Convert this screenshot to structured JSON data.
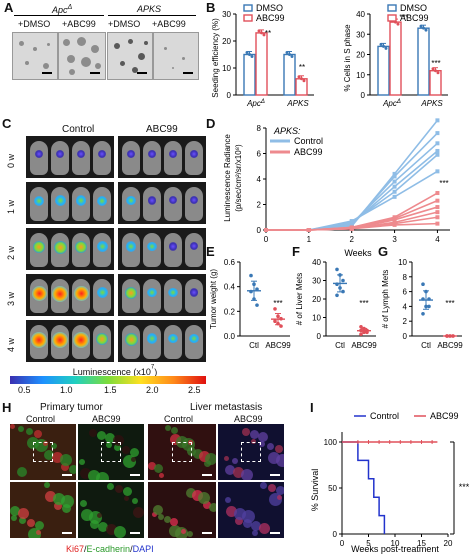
{
  "panels": {
    "A": {
      "label": "A",
      "group1": "Apc",
      "group1_sup": "Δ",
      "group2": "APKS",
      "cond1": "+DMSO",
      "cond2": "+ABC99",
      "cond3": "+DMSO",
      "cond4": "+ABC99"
    },
    "B": {
      "label": "B",
      "legend_dmso": "DMSO",
      "legend_abc99": "ABC99",
      "left": {
        "ylabel": "Seeding efficiency (%)",
        "yticks": [
          "0",
          "10",
          "20",
          "30"
        ],
        "xcat1": "Apc",
        "xcat1_sup": "Δ",
        "xcat2": "APKS",
        "sig1": "**",
        "sig2": "**"
      },
      "right": {
        "ylabel": "% Cells in S phase",
        "yticks": [
          "0",
          "10",
          "20",
          "30",
          "40"
        ],
        "xcat1": "Apc",
        "xcat1_sup": "Δ",
        "xcat2": "APKS",
        "sig1": "***",
        "sig2": "***"
      }
    },
    "C": {
      "label": "C",
      "col_control": "Control",
      "col_abc99": "ABC99",
      "rows": [
        "0  w",
        "1  w",
        "2  w",
        "3  w",
        "4  w"
      ],
      "scale_title": "Luminescence (x10",
      "scale_title_sup": "7",
      "scale_title_end": ")",
      "scale_ticks": [
        "0.5",
        "1.0",
        "1.5",
        "2.0",
        "2.5"
      ]
    },
    "D": {
      "label": "D",
      "legend_title": "APKS:",
      "legend_control": "Control",
      "legend_abc99": "ABC99",
      "ylabel": "Luminescence Radiance",
      "ylabel2": "(p/sec/cm²/sr/x10⁸)",
      "xlabel": "Weeks",
      "yticks": [
        "0",
        "2",
        "4",
        "6",
        "8"
      ],
      "xticks": [
        "0",
        "1",
        "2",
        "3",
        "4"
      ],
      "sig": "***"
    },
    "E": {
      "label": "E",
      "ylabel": "Tumor weight (g)",
      "yticks": [
        "0.0",
        "0.2",
        "0.4",
        "0.6"
      ],
      "cats": [
        "Ctl",
        "ABC99"
      ],
      "sig": "***"
    },
    "F": {
      "label": "F",
      "ylabel": "# of Liver Mets",
      "yticks": [
        "0",
        "10",
        "20",
        "30",
        "40"
      ],
      "cats": [
        "Ctl",
        "ABC99"
      ],
      "sig": "***"
    },
    "G": {
      "label": "G",
      "ylabel": "# of Lymph Mets",
      "yticks": [
        "0",
        "2",
        "4",
        "6",
        "8",
        "10"
      ],
      "cats": [
        "Ctl",
        "ABC99"
      ],
      "sig": "***"
    },
    "H": {
      "label": "H",
      "title_left": "Primary tumor",
      "title_right": "Liver metastasis",
      "control": "Control",
      "abc99": "ABC99",
      "stain1": "Ki67",
      "stain_sep1": "/",
      "stain2": "E-cadherin",
      "stain_sep2": "/",
      "stain3": "DAPI"
    },
    "I": {
      "label": "I",
      "legend_control": "Control",
      "legend_abc99": "ABC99",
      "ylabel": "% Survival",
      "xlabel": "Weeks post-treatment",
      "yticks": [
        "0",
        "50",
        "100"
      ],
      "xticks": [
        "0",
        "5",
        "10",
        "15",
        "20"
      ],
      "sig": "***"
    }
  },
  "colors": {
    "dmso": "#3a78b5",
    "abc99": "#e0505a",
    "control_line": "#8fbde6",
    "abc99_line": "#ee8a8e"
  },
  "chart_data": [
    {
      "panel": "B-left",
      "type": "bar",
      "categories": [
        "Apc Δ",
        "APKS"
      ],
      "series": [
        {
          "name": "DMSO",
          "values": [
            15,
            15
          ]
        },
        {
          "name": "ABC99",
          "values": [
            23,
            6
          ]
        }
      ],
      "ylabel": "Seeding efficiency (%)",
      "ylim": [
        0,
        30
      ]
    },
    {
      "panel": "B-right",
      "type": "bar",
      "categories": [
        "Apc Δ",
        "APKS"
      ],
      "series": [
        {
          "name": "DMSO",
          "values": [
            24,
            33
          ]
        },
        {
          "name": "ABC99",
          "values": [
            36,
            12
          ]
        }
      ],
      "ylabel": "% Cells in S phase",
      "ylim": [
        0,
        40
      ]
    },
    {
      "panel": "D",
      "type": "line",
      "x": [
        0,
        1,
        2,
        3,
        4
      ],
      "series": [
        {
          "name": "Control",
          "values": [
            0,
            0,
            0.3,
            4.4,
            8.6
          ]
        },
        {
          "name": "Control",
          "values": [
            0,
            0,
            0.4,
            4.2,
            7.6
          ]
        },
        {
          "name": "Control",
          "values": [
            0,
            0,
            0.5,
            3.8,
            6.8
          ]
        },
        {
          "name": "Control",
          "values": [
            0,
            0,
            0.5,
            3.4,
            6.2
          ]
        },
        {
          "name": "Control",
          "values": [
            0,
            0,
            0.6,
            3.0,
            5.9
          ]
        },
        {
          "name": "Control",
          "values": [
            0,
            0,
            0.7,
            2.6,
            4.6
          ]
        },
        {
          "name": "ABC99",
          "values": [
            0,
            0,
            0.2,
            1.0,
            2.9
          ]
        },
        {
          "name": "ABC99",
          "values": [
            0,
            0,
            0.2,
            0.9,
            2.3
          ]
        },
        {
          "name": "ABC99",
          "values": [
            0,
            0,
            0.1,
            0.8,
            1.8
          ]
        },
        {
          "name": "ABC99",
          "values": [
            0,
            0,
            0.1,
            0.6,
            1.4
          ]
        },
        {
          "name": "ABC99",
          "values": [
            0,
            0,
            0.1,
            0.5,
            1.0
          ]
        },
        {
          "name": "ABC99",
          "values": [
            0,
            0,
            0.1,
            0.4,
            0.5
          ]
        }
      ],
      "xlabel": "Weeks",
      "ylabel": "Luminescence Radiance (p/sec/cm²/sr/x10⁸)",
      "ylim": [
        0,
        8
      ]
    },
    {
      "panel": "E",
      "type": "scatter",
      "categories": [
        "Ctl",
        "ABC99"
      ],
      "series": [
        {
          "name": "Ctl",
          "values": [
            0.49,
            0.42,
            0.38,
            0.36,
            0.3,
            0.25
          ]
        },
        {
          "name": "ABC99",
          "values": [
            0.22,
            0.16,
            0.14,
            0.12,
            0.1,
            0.08
          ]
        }
      ],
      "ylabel": "Tumor weight (g)",
      "ylim": [
        0,
        0.6
      ]
    },
    {
      "panel": "F",
      "type": "scatter",
      "categories": [
        "Ctl",
        "ABC99"
      ],
      "series": [
        {
          "name": "Ctl",
          "values": [
            36,
            33,
            30,
            28,
            26,
            24,
            22
          ]
        },
        {
          "name": "ABC99",
          "values": [
            5,
            4,
            3,
            3,
            2,
            2,
            1
          ]
        }
      ],
      "ylabel": "# of Liver Mets",
      "ylim": [
        0,
        40
      ]
    },
    {
      "panel": "G",
      "type": "scatter",
      "categories": [
        "Ctl",
        "ABC99"
      ],
      "series": [
        {
          "name": "Ctl",
          "values": [
            7,
            6,
            5,
            5,
            4,
            4,
            3
          ]
        },
        {
          "name": "ABC99",
          "values": [
            0,
            0,
            0,
            0,
            0,
            0,
            0
          ]
        }
      ],
      "ylabel": "# of Lymph Mets",
      "ylim": [
        0,
        10
      ]
    },
    {
      "panel": "I",
      "type": "line",
      "x": [
        0,
        2,
        3,
        5,
        6,
        7,
        8,
        18
      ],
      "series": [
        {
          "name": "Control",
          "values": [
            100,
            100,
            80,
            60,
            40,
            20,
            0,
            0
          ]
        },
        {
          "name": "ABC99",
          "values": [
            100,
            100,
            100,
            100,
            100,
            100,
            100,
            100
          ]
        }
      ],
      "xlabel": "Weeks post-treatment",
      "ylabel": "% Survival",
      "ylim": [
        0,
        100
      ]
    }
  ]
}
